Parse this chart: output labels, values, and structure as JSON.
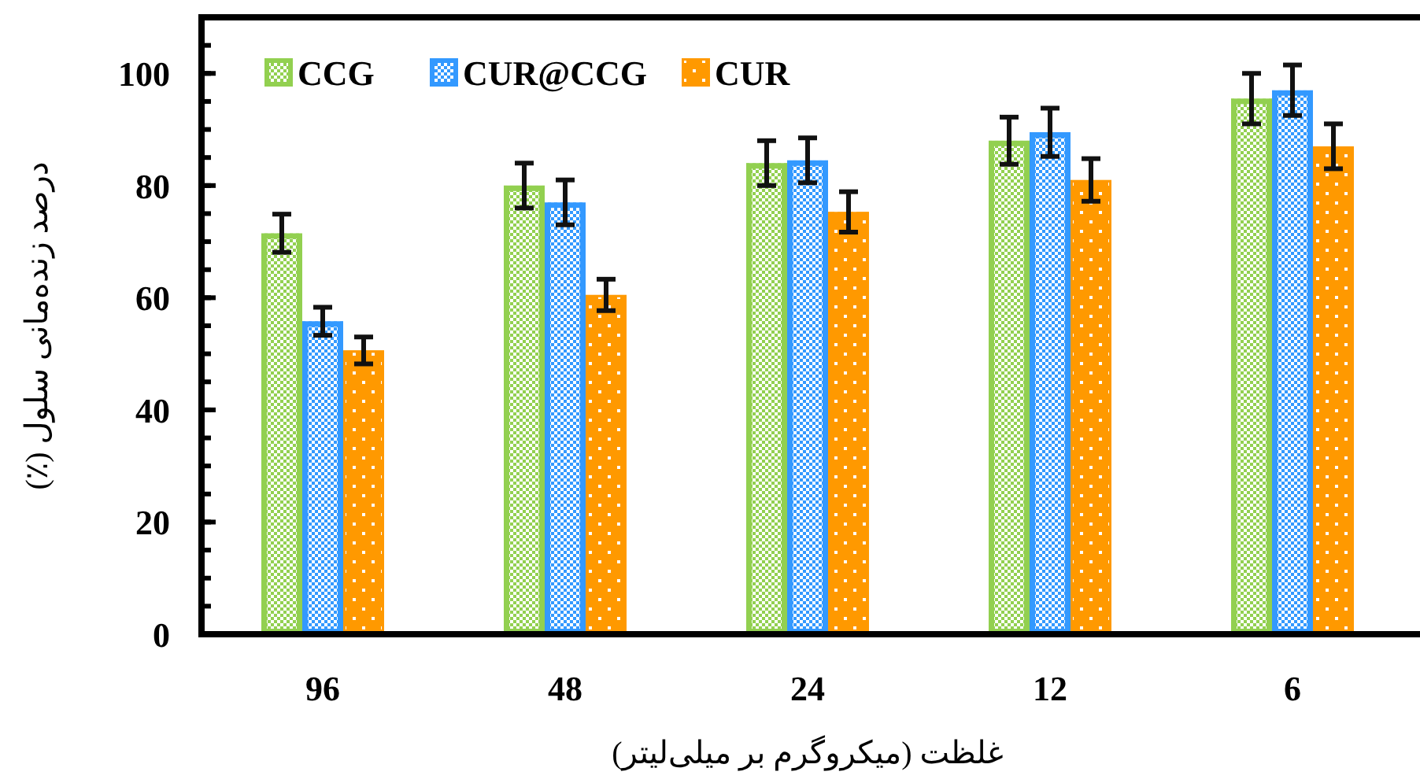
{
  "chart_data": {
    "type": "bar",
    "xlabel": "غلظت (میکروگرم بر میلی‌لیتر)",
    "ylabel": "درصد زنده‌مانی سلول (٪)",
    "categories": [
      "96",
      "48",
      "24",
      "12",
      "6"
    ],
    "series": [
      {
        "name": "CCG",
        "color": "#92d050",
        "values": [
          71.5,
          80,
          84,
          88,
          95.5
        ],
        "errors": [
          3.4,
          4,
          4,
          4.2,
          4.5
        ]
      },
      {
        "name": "CUR@CCG",
        "color": "#3399ff",
        "values": [
          55.8,
          77,
          84.5,
          89.5,
          97
        ],
        "errors": [
          2.5,
          4,
          4,
          4.3,
          4.5
        ]
      },
      {
        "name": "CUR",
        "color": "#ff9900",
        "values": [
          50.6,
          60.5,
          75.3,
          81,
          87
        ],
        "errors": [
          2.4,
          2.8,
          3.6,
          3.8,
          4
        ]
      }
    ],
    "ylim": [
      0,
      110
    ],
    "yticks": [
      0,
      20,
      40,
      60,
      80,
      100
    ],
    "legend": "top left"
  }
}
